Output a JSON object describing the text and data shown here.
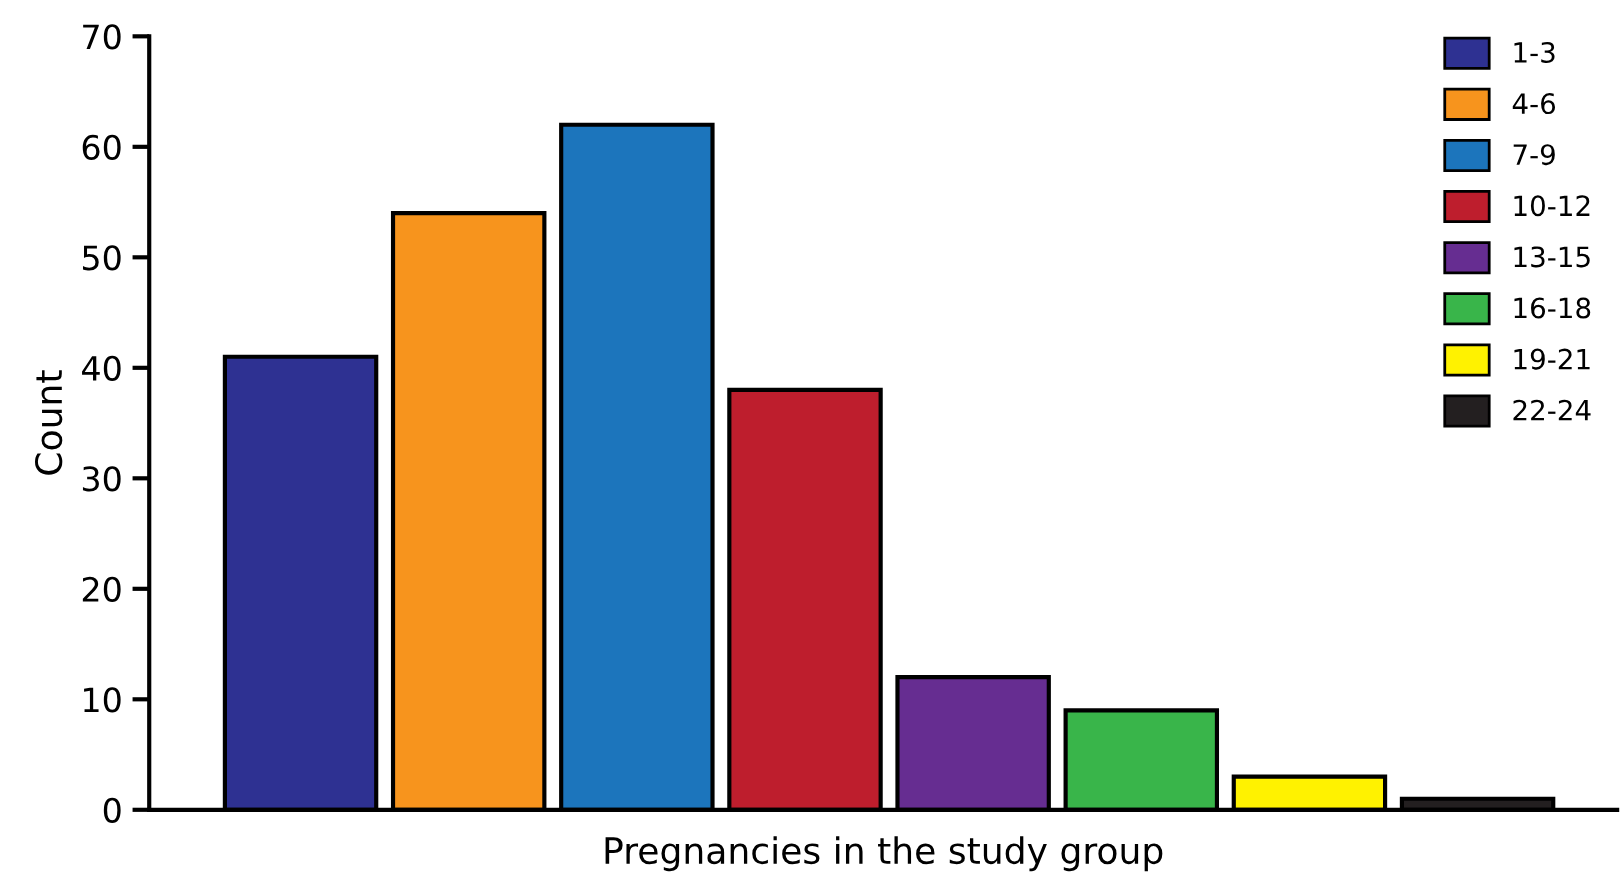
{
  "chart_data": {
    "type": "bar",
    "xlabel": "Pregnancies in the study group",
    "ylabel": "Count",
    "categories": [
      null,
      null,
      null,
      null,
      null,
      null,
      null,
      null
    ],
    "series": [
      {
        "name": "1-3",
        "color": "#2e3192",
        "values": [
          41,
          null,
          null,
          null,
          null,
          null,
          null,
          null
        ]
      },
      {
        "name": "4-6",
        "color": "#f7941d",
        "values": [
          null,
          54,
          null,
          null,
          null,
          null,
          null,
          null
        ]
      },
      {
        "name": "7-9",
        "color": "#1c75bc",
        "values": [
          null,
          null,
          62,
          null,
          null,
          null,
          null,
          null
        ]
      },
      {
        "name": "10-12",
        "color": "#be1e2d",
        "values": [
          null,
          null,
          null,
          38,
          null,
          null,
          null,
          null
        ]
      },
      {
        "name": "13-15",
        "color": "#662d91",
        "values": [
          null,
          null,
          null,
          null,
          12,
          null,
          null,
          null
        ]
      },
      {
        "name": "16-18",
        "color": "#39b54a",
        "values": [
          null,
          null,
          null,
          null,
          null,
          9,
          null,
          null
        ]
      },
      {
        "name": "19-21",
        "color": "#fff200",
        "values": [
          null,
          null,
          null,
          null,
          null,
          null,
          3,
          null
        ]
      },
      {
        "name": "22-24",
        "color": "#231f20",
        "values": [
          null,
          null,
          null,
          null,
          null,
          null,
          null,
          1
        ]
      }
    ],
    "ylim": [
      0,
      70
    ],
    "yticks": [
      0,
      10,
      20,
      30,
      40,
      50,
      60,
      70
    ],
    "grid": false,
    "legend": "top right"
  }
}
